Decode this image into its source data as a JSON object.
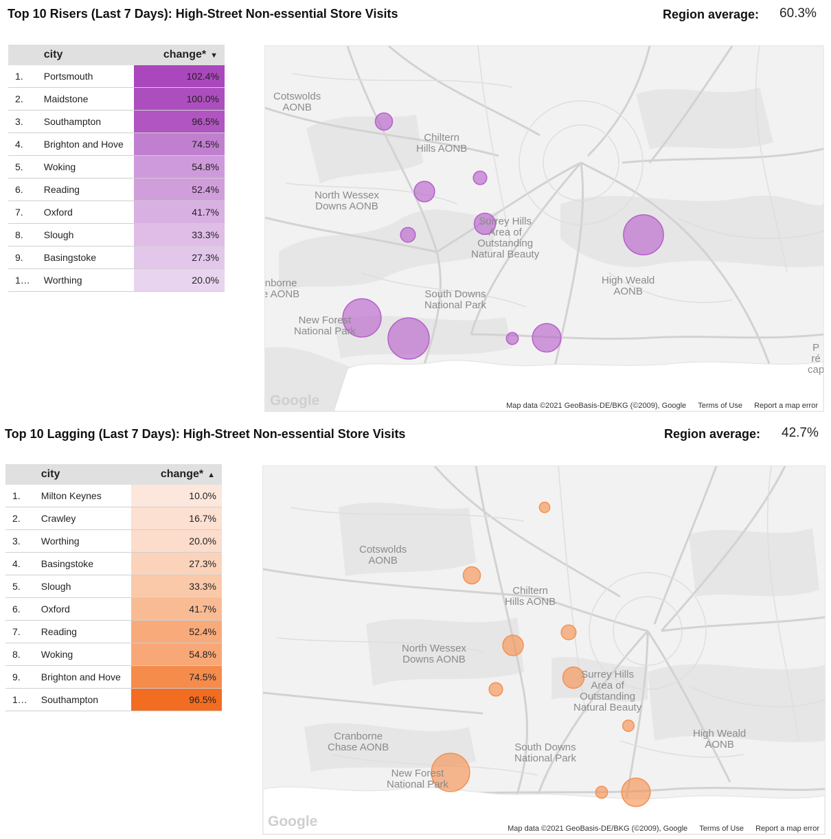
{
  "risers": {
    "title": "Top 10 Risers (Last 7 Days): High-Street Non-essential Store Visits",
    "avg_label": "Region average:",
    "avg_value": "60.3%",
    "col_city": "city",
    "col_change": "change*",
    "sort_icon": "caret-down-icon",
    "rows": [
      {
        "n": "1.",
        "city": "Portsmouth",
        "value": "102.4%",
        "color": "#ab47bc"
      },
      {
        "n": "2.",
        "city": "Maidstone",
        "value": "100.0%",
        "color": "#ad4ebf"
      },
      {
        "n": "3.",
        "city": "Southampton",
        "value": "96.5%",
        "color": "#b055c1"
      },
      {
        "n": "4.",
        "city": "Brighton and Hove",
        "value": "74.5%",
        "color": "#c07fcf"
      },
      {
        "n": "5.",
        "city": "Woking",
        "value": "54.8%",
        "color": "#cf9adb"
      },
      {
        "n": "6.",
        "city": "Reading",
        "value": "52.4%",
        "color": "#d19edc"
      },
      {
        "n": "7.",
        "city": "Oxford",
        "value": "41.7%",
        "color": "#d8b0e2"
      },
      {
        "n": "8.",
        "city": "Slough",
        "value": "33.3%",
        "color": "#dfbde7"
      },
      {
        "n": "9.",
        "city": "Basingstoke",
        "value": "27.3%",
        "color": "#e3c7ea"
      },
      {
        "n": "1…",
        "city": "Worthing",
        "value": "20.0%",
        "color": "#e9d4ef"
      }
    ],
    "map": {
      "bubble_color": "#b65fc9",
      "labels": [
        "Cotswolds\nAONB",
        "Chiltern\nHills AONB",
        "North Wessex\nDowns AONB",
        "Surrey Hills\nArea of\nOutstanding\nNatural Beauty",
        "High Weald\nAONB",
        "South Downs\nNational Park",
        "New Forest\nNational Park",
        "nborne\ne AONB",
        "P\nré\ncap"
      ],
      "logo": "Google",
      "attribution": [
        "Map data ©2021 GeoBasis-DE/BKG (©2009), Google",
        "Terms of Use",
        "Report a map error"
      ]
    }
  },
  "lagging": {
    "title": "Top 10 Lagging (Last 7 Days): High-Street Non-essential Store Visits",
    "avg_label": "Region average:",
    "avg_value": "42.7%",
    "col_city": "city",
    "col_change": "change*",
    "sort_icon": "caret-up-icon",
    "rows": [
      {
        "n": "1.",
        "city": "Milton Keynes",
        "value": "10.0%",
        "color": "#fde7dc"
      },
      {
        "n": "2.",
        "city": "Crawley",
        "value": "16.7%",
        "color": "#fce0d1"
      },
      {
        "n": "3.",
        "city": "Worthing",
        "value": "20.0%",
        "color": "#fcdccb"
      },
      {
        "n": "4.",
        "city": "Basingstoke",
        "value": "27.3%",
        "color": "#fbd3bb"
      },
      {
        "n": "5.",
        "city": "Slough",
        "value": "33.3%",
        "color": "#fac9aa"
      },
      {
        "n": "6.",
        "city": "Oxford",
        "value": "41.7%",
        "color": "#f9bb94"
      },
      {
        "n": "7.",
        "city": "Reading",
        "value": "52.4%",
        "color": "#f8aa7a"
      },
      {
        "n": "8.",
        "city": "Woking",
        "value": "54.8%",
        "color": "#f8a777"
      },
      {
        "n": "9.",
        "city": "Brighton and Hove",
        "value": "74.5%",
        "color": "#f58c4c"
      },
      {
        "n": "1…",
        "city": "Southampton",
        "value": "96.5%",
        "color": "#f26d21"
      }
    ],
    "map": {
      "bubble_color": "#f5904f",
      "labels": [
        "Cotswolds\nAONB",
        "Chiltern\nHills AONB",
        "North Wessex\nDowns AONB",
        "Surrey Hills\nArea of\nOutstanding\nNatural Beauty",
        "High Weald\nAONB",
        "South Downs\nNational Park",
        "New Forest\nNational Park",
        "Cranborne\nChase AONB"
      ],
      "logo": "Google",
      "attribution": [
        "Map data ©2021 GeoBasis-DE/BKG (©2009), Google",
        "Terms of Use",
        "Report a map error"
      ]
    }
  }
}
